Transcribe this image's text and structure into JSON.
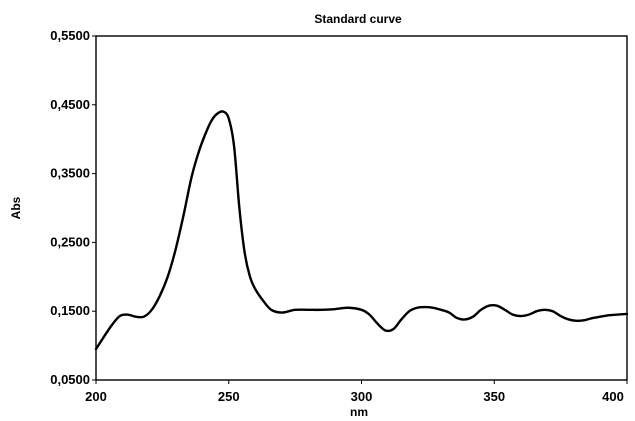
{
  "chart_data": {
    "type": "line",
    "title": "Standard curve",
    "xlabel": "nm",
    "ylabel": "Abs",
    "xlim": [
      200,
      400
    ],
    "ylim": [
      0.05,
      0.55
    ],
    "x_ticks": [
      200,
      250,
      300,
      350,
      400
    ],
    "x_tick_labels": [
      "200",
      "250",
      "300",
      "350",
      "400"
    ],
    "y_ticks": [
      0.05,
      0.15,
      0.25,
      0.35,
      0.45,
      0.55
    ],
    "y_tick_labels": [
      "0,0500",
      "0,1500",
      "0,2500",
      "0,3500",
      "0,4500",
      "0,5500"
    ],
    "grid": false,
    "line_color": "#000000",
    "series": [
      {
        "x": [
          200,
          203,
          206,
          209,
          212,
          215,
          218,
          221,
          224,
          227,
          230,
          233,
          236,
          239,
          242,
          244,
          246,
          248,
          250,
          252,
          254,
          256,
          258,
          260,
          263,
          266,
          270,
          275,
          280,
          285,
          290,
          295,
          300,
          303,
          306,
          309,
          312,
          315,
          318,
          321,
          324,
          327,
          330,
          333,
          336,
          339,
          342,
          345,
          348,
          351,
          354,
          357,
          360,
          363,
          366,
          369,
          372,
          375,
          378,
          381,
          384,
          387,
          390,
          393,
          396,
          400
        ],
        "y": [
          0.095,
          0.113,
          0.13,
          0.143,
          0.145,
          0.142,
          0.142,
          0.152,
          0.172,
          0.2,
          0.24,
          0.29,
          0.345,
          0.385,
          0.415,
          0.43,
          0.438,
          0.44,
          0.43,
          0.39,
          0.3,
          0.235,
          0.2,
          0.182,
          0.165,
          0.152,
          0.148,
          0.152,
          0.152,
          0.152,
          0.153,
          0.155,
          0.152,
          0.145,
          0.132,
          0.122,
          0.124,
          0.138,
          0.15,
          0.155,
          0.156,
          0.155,
          0.152,
          0.148,
          0.14,
          0.138,
          0.142,
          0.152,
          0.158,
          0.158,
          0.152,
          0.145,
          0.143,
          0.145,
          0.15,
          0.152,
          0.15,
          0.143,
          0.138,
          0.136,
          0.137,
          0.14,
          0.142,
          0.144,
          0.145,
          0.146
        ]
      }
    ]
  }
}
